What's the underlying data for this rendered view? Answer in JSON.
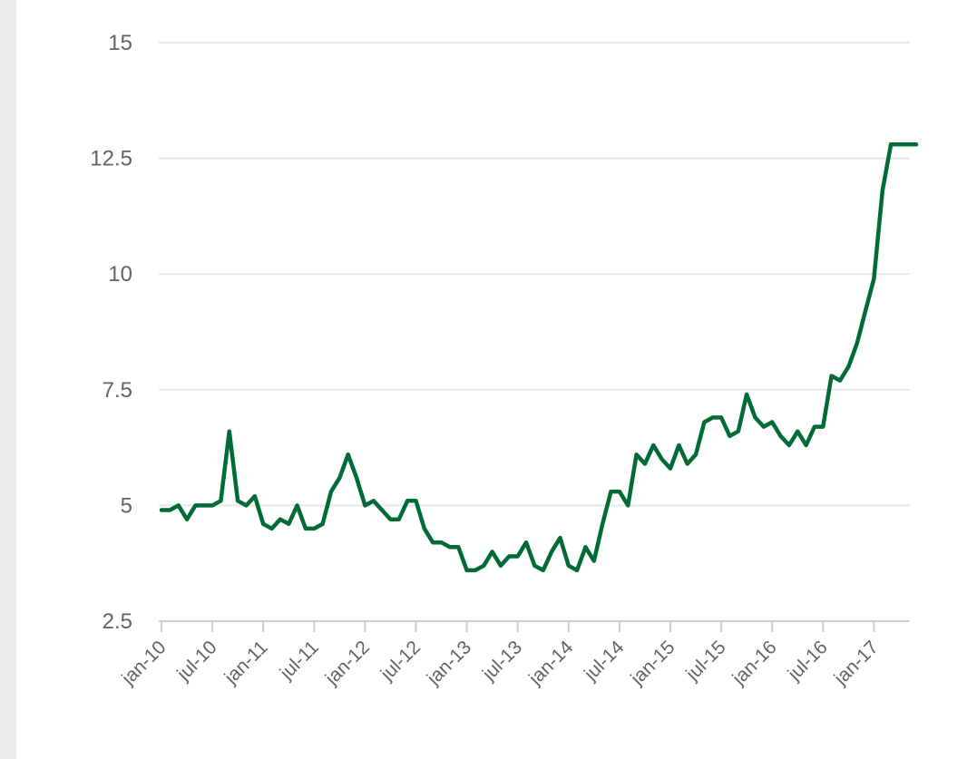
{
  "chart_data": {
    "type": "line",
    "title": "",
    "xlabel": "",
    "ylabel": "",
    "ylim": [
      2.5,
      15
    ],
    "y_ticks": [
      "2.5",
      "5",
      "7.5",
      "10",
      "12.5",
      "15"
    ],
    "y_tick_values": [
      2.5,
      5,
      7.5,
      10,
      12.5,
      15
    ],
    "x_tick_labels": [
      "jan-10",
      "jul-10",
      "jan-11",
      "jul-11",
      "jan-12",
      "jul-12",
      "jan-13",
      "jul-13",
      "jan-14",
      "jul-14",
      "jan-15",
      "jul-15",
      "jan-16",
      "jul-16",
      "jan-17"
    ],
    "x_start": "jan-10",
    "x_end": "jun-17",
    "grid": true,
    "line_color": "#006b35",
    "series": [
      {
        "values": [
          4.9,
          4.9,
          5.0,
          4.7,
          5.0,
          5.0,
          5.0,
          5.1,
          6.6,
          5.1,
          5.0,
          5.2,
          4.6,
          4.5,
          4.7,
          4.6,
          5.0,
          4.5,
          4.5,
          4.6,
          5.3,
          5.6,
          6.1,
          5.6,
          5.0,
          5.1,
          4.9,
          4.7,
          4.7,
          5.1,
          5.1,
          4.5,
          4.2,
          4.2,
          4.1,
          4.1,
          3.6,
          3.6,
          3.7,
          4.0,
          3.7,
          3.9,
          3.9,
          4.2,
          3.7,
          3.6,
          4.0,
          4.3,
          3.7,
          3.6,
          4.1,
          3.8,
          4.6,
          5.3,
          5.3,
          5.0,
          6.1,
          5.9,
          6.3,
          6.0,
          5.8,
          6.3,
          5.9,
          6.1,
          6.8,
          6.9,
          6.9,
          6.5,
          6.6,
          7.4,
          6.9,
          6.7,
          6.8,
          6.5,
          6.3,
          6.6,
          6.3,
          6.7,
          6.7,
          7.8,
          7.7,
          8.0,
          8.5,
          9.2,
          9.9,
          11.8,
          12.8,
          12.8,
          12.8,
          12.8
        ]
      }
    ]
  }
}
